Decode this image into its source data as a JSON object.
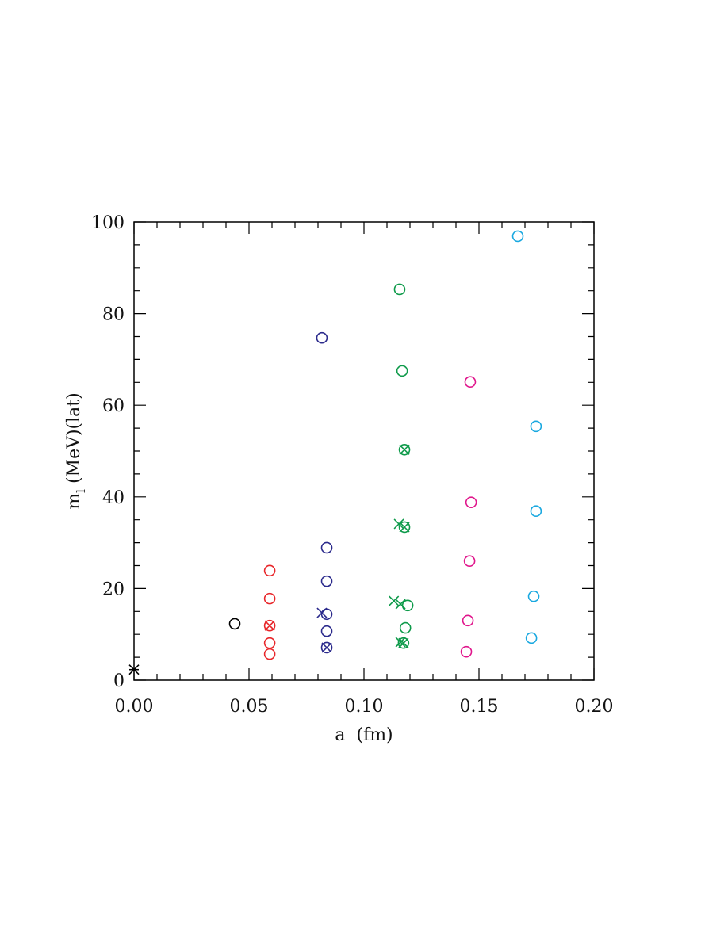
{
  "chart_data": {
    "type": "scatter",
    "xlabel": "a  (fm)",
    "ylabel": [
      "m",
      "l",
      " (MeV)(lat)"
    ],
    "xlim": [
      0,
      0.2
    ],
    "ylim": [
      0,
      100
    ],
    "xticks": [
      {
        "value": 0,
        "label": "0.00"
      },
      {
        "value": 0.05,
        "label": "0.05"
      },
      {
        "value": 0.1,
        "label": "0.10"
      },
      {
        "value": 0.15,
        "label": "0.15"
      },
      {
        "value": 0.2,
        "label": "0.20"
      }
    ],
    "yticks": [
      0,
      20,
      40,
      60,
      80,
      100
    ],
    "xminorticks": [
      0.01,
      0.02,
      0.03,
      0.04,
      0.06,
      0.07,
      0.08,
      0.09,
      0.11,
      0.12,
      0.13,
      0.14,
      0.16,
      0.17,
      0.18,
      0.19
    ],
    "yminorticks": [
      5,
      10,
      15,
      25,
      30,
      35,
      45,
      50,
      55,
      65,
      70,
      75,
      85,
      90,
      95
    ],
    "series": [
      {
        "color": "#000000",
        "marker": "circle",
        "x": [
          0.0438
        ],
        "values": [
          12.3
        ]
      },
      {
        "color": "#000000",
        "marker": "star",
        "x": [
          0
        ],
        "values": [
          2.3
        ]
      },
      {
        "color": "#e8262a",
        "marker": "circle",
        "x": [
          0.059,
          0.059,
          0.059,
          0.059
        ],
        "values": [
          23.9,
          17.8,
          8.1,
          5.7
        ]
      },
      {
        "color": "#e8262a",
        "marker": "crossed-circle",
        "x": [
          0.059
        ],
        "values": [
          11.9
        ]
      },
      {
        "color": "#2b2a8c",
        "marker": "circle",
        "x": [
          0.0817,
          0.0838,
          0.0838,
          0.0838,
          0.0838
        ],
        "values": [
          74.7,
          28.9,
          21.6,
          14.4,
          10.7
        ]
      },
      {
        "color": "#2b2a8c",
        "marker": "cross",
        "x": [
          0.0817
        ],
        "values": [
          14.7
        ]
      },
      {
        "color": "#2b2a8c",
        "marker": "crossed-circle",
        "x": [
          0.0838
        ],
        "values": [
          7.1
        ]
      },
      {
        "color": "#0e9a4a",
        "marker": "circle",
        "x": [
          0.1155,
          0.1166,
          0.119,
          0.118
        ],
        "values": [
          85.3,
          67.5,
          16.3,
          11.4
        ]
      },
      {
        "color": "#0e9a4a",
        "marker": "crossed-circle",
        "x": [
          0.1176,
          0.1176,
          0.1172
        ],
        "values": [
          50.3,
          33.4,
          8.1
        ]
      },
      {
        "color": "#0e9a4a",
        "marker": "cross",
        "x": [
          0.1152,
          0.113,
          0.1159,
          0.1159
        ],
        "values": [
          34.1,
          17.3,
          16.6,
          8.3
        ]
      },
      {
        "color": "#e0168c",
        "marker": "circle",
        "x": [
          0.1462,
          0.1466,
          0.1459,
          0.1452,
          0.1445
        ],
        "values": [
          65.1,
          38.8,
          26.0,
          13.0,
          6.2
        ]
      },
      {
        "color": "#19a8e0",
        "marker": "circle",
        "x": [
          0.1669,
          0.1748,
          0.1748,
          0.1738,
          0.1728
        ],
        "values": [
          96.9,
          55.4,
          36.9,
          18.3,
          9.2
        ]
      }
    ]
  }
}
